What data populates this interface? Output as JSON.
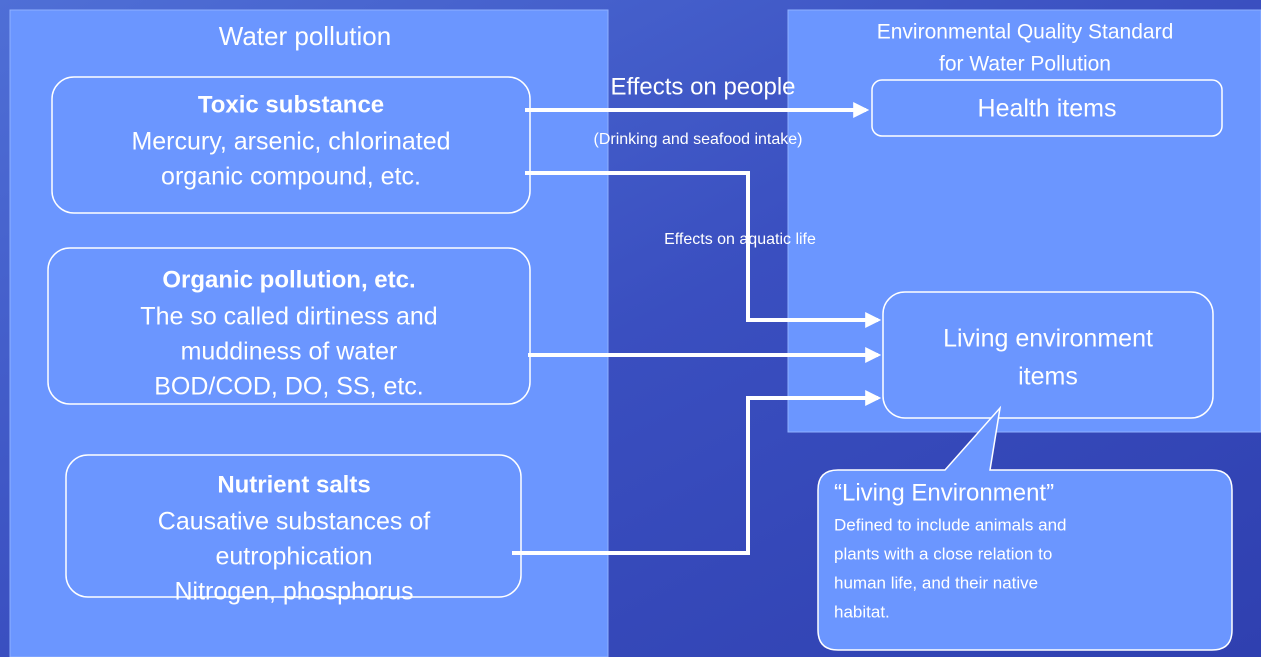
{
  "left_panel": {
    "title": "Water pollution"
  },
  "right_panel": {
    "title_lines": [
      "Environmental Quality Standard",
      "for Water Pollution"
    ]
  },
  "sources": [
    {
      "heading": "Toxic substance",
      "lines": [
        "Mercury, arsenic, chlorinated",
        "organic compound, etc."
      ]
    },
    {
      "heading": "Organic pollution, etc.",
      "lines": [
        "The so called dirtiness and",
        "muddiness of water",
        "BOD/COD, DO, SS, etc."
      ]
    },
    {
      "heading": "Nutrient salts",
      "lines": [
        "Causative substances of",
        "eutrophication",
        "Nitrogen, phosphorus"
      ]
    }
  ],
  "targets": [
    {
      "lines": [
        "Health items"
      ]
    },
    {
      "lines": [
        "Living environment",
        "items"
      ]
    }
  ],
  "arrow_labels": [
    {
      "text": "Effects on people"
    },
    {
      "text": "(Drinking and seafood intake)"
    },
    {
      "text": "Effects on aquatic life"
    }
  ],
  "callout": {
    "title": "“Living Environment”",
    "lines": [
      "Defined to include animals and",
      "plants with a close relation to",
      "human life, and their native",
      "habitat."
    ]
  }
}
